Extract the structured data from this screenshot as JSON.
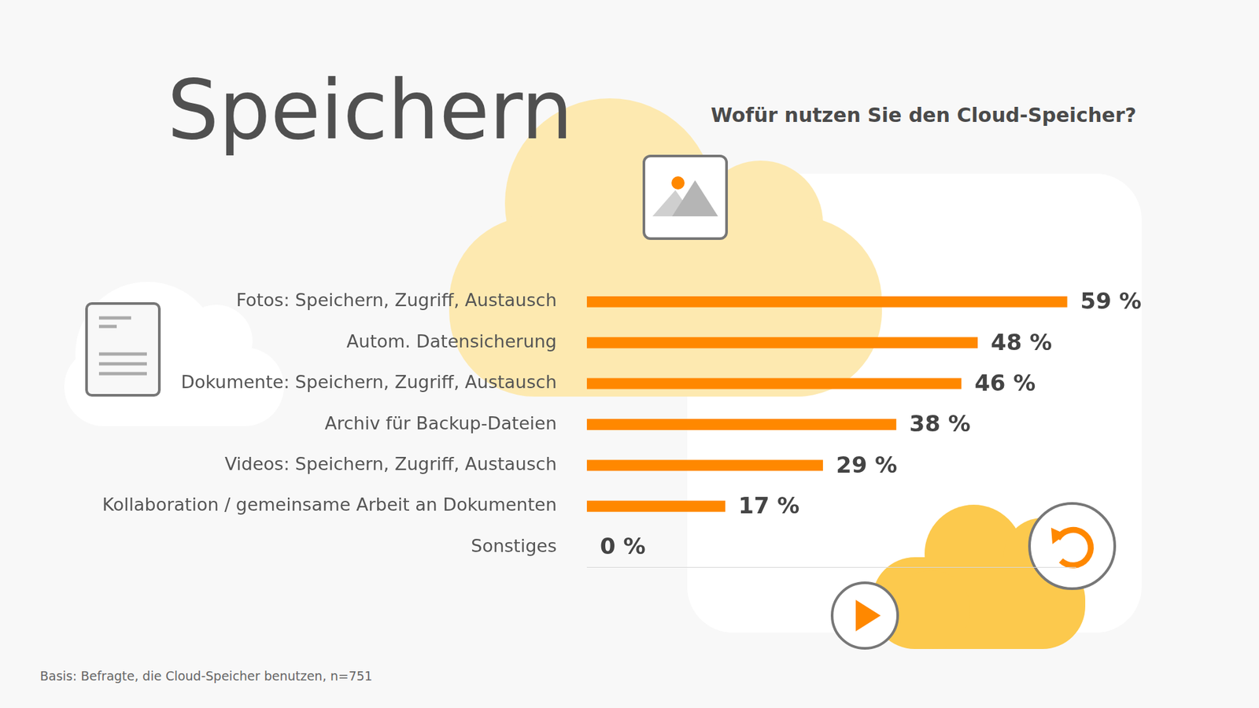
{
  "page": {
    "heading": "Speichern",
    "footnote": "Basis: Befragte, die Cloud-Speicher benutzen, n=751"
  },
  "chart_data": {
    "type": "bar",
    "orientation": "horizontal",
    "title": "Wofür nutzen Sie den Cloud-Speicher?",
    "categories": [
      "Fotos: Speichern, Zugriff, Austausch",
      "Autom. Datensicherung",
      "Dokumente: Speichern, Zugriff, Austausch",
      "Archiv für Backup-Dateien",
      "Videos: Speichern, Zugriff, Austausch",
      "Kollaboration / gemeinsame Arbeit an Dokumenten",
      "Sonstiges"
    ],
    "values": [
      59,
      48,
      46,
      38,
      29,
      17,
      0
    ],
    "value_labels": [
      "59 %",
      "48 %",
      "46 %",
      "38 %",
      "29 %",
      "17 %",
      "0 %"
    ],
    "data_labels": true,
    "color": "#ff8800",
    "xlim": [
      0,
      60
    ],
    "xticks": [],
    "grid": false,
    "tick_labels": "y"
  }
}
